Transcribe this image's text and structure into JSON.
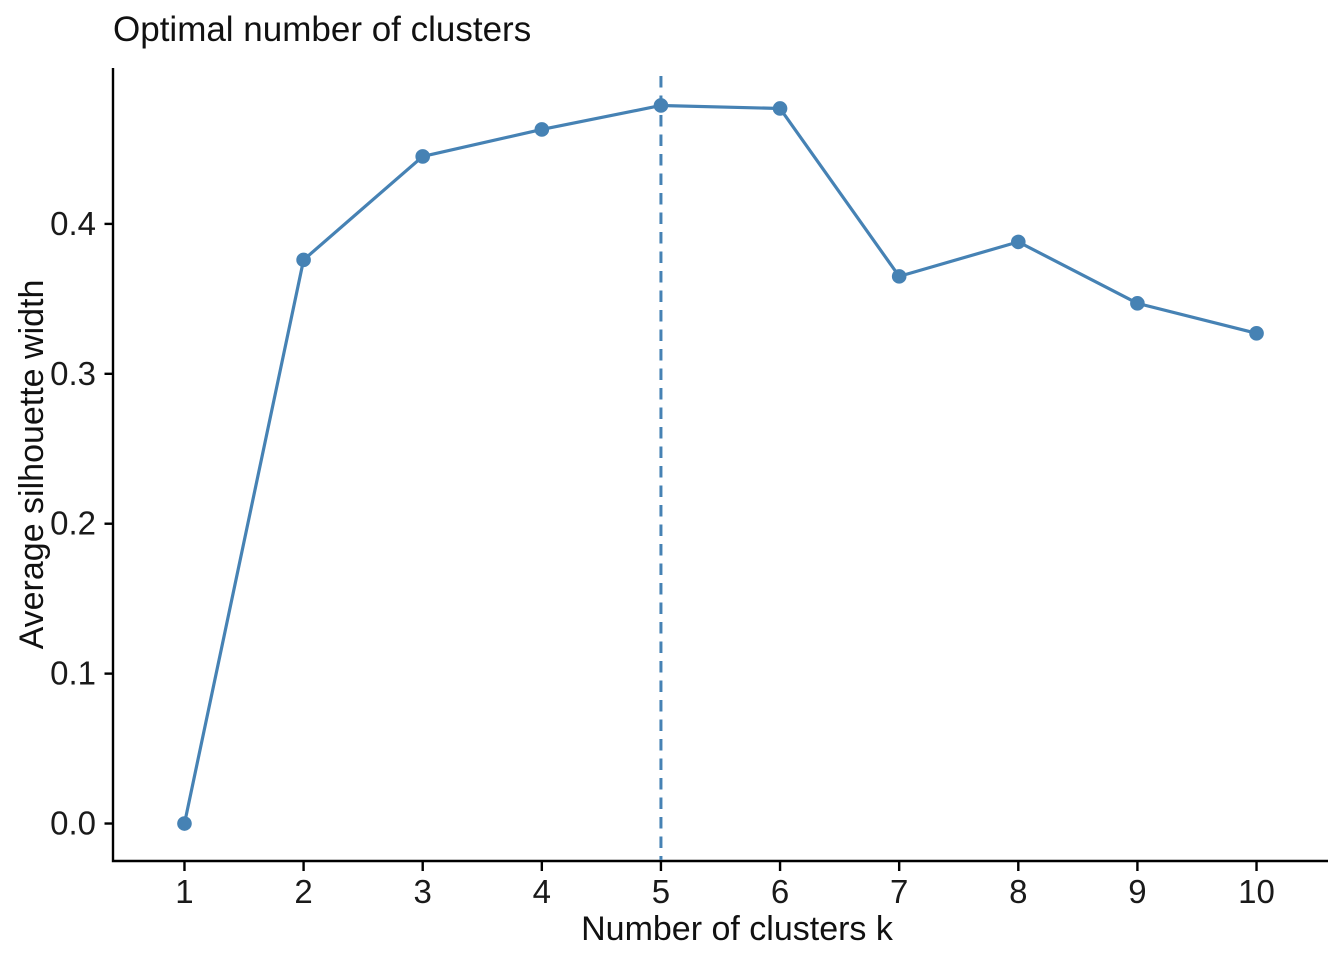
{
  "chart_data": {
    "type": "line",
    "title": "Optimal number of clusters",
    "xlabel": "Number of clusters k",
    "ylabel": "Average silhouette width",
    "x": [
      1,
      2,
      3,
      4,
      5,
      6,
      7,
      8,
      9,
      10
    ],
    "values": [
      0.0,
      0.376,
      0.445,
      0.463,
      0.479,
      0.477,
      0.365,
      0.388,
      0.347,
      0.327
    ],
    "x_tick_labels": [
      "1",
      "2",
      "3",
      "4",
      "5",
      "6",
      "7",
      "8",
      "9",
      "10"
    ],
    "y_tick_labels": [
      "0.0",
      "0.1",
      "0.2",
      "0.3",
      "0.4"
    ],
    "y_tick_values": [
      0.0,
      0.1,
      0.2,
      0.3,
      0.4
    ],
    "xlim": [
      0.4,
      10.6
    ],
    "ylim": [
      -0.025,
      0.504
    ],
    "optimal_k": 5,
    "vline_at_x": 5,
    "vline_style": "dashed",
    "marker": "circle",
    "grid": false,
    "legend": "none",
    "series_color": "#4682B4",
    "axis_color": "#000000",
    "text_color": "#1a1a1a",
    "background_color": "#FFFFFF"
  }
}
